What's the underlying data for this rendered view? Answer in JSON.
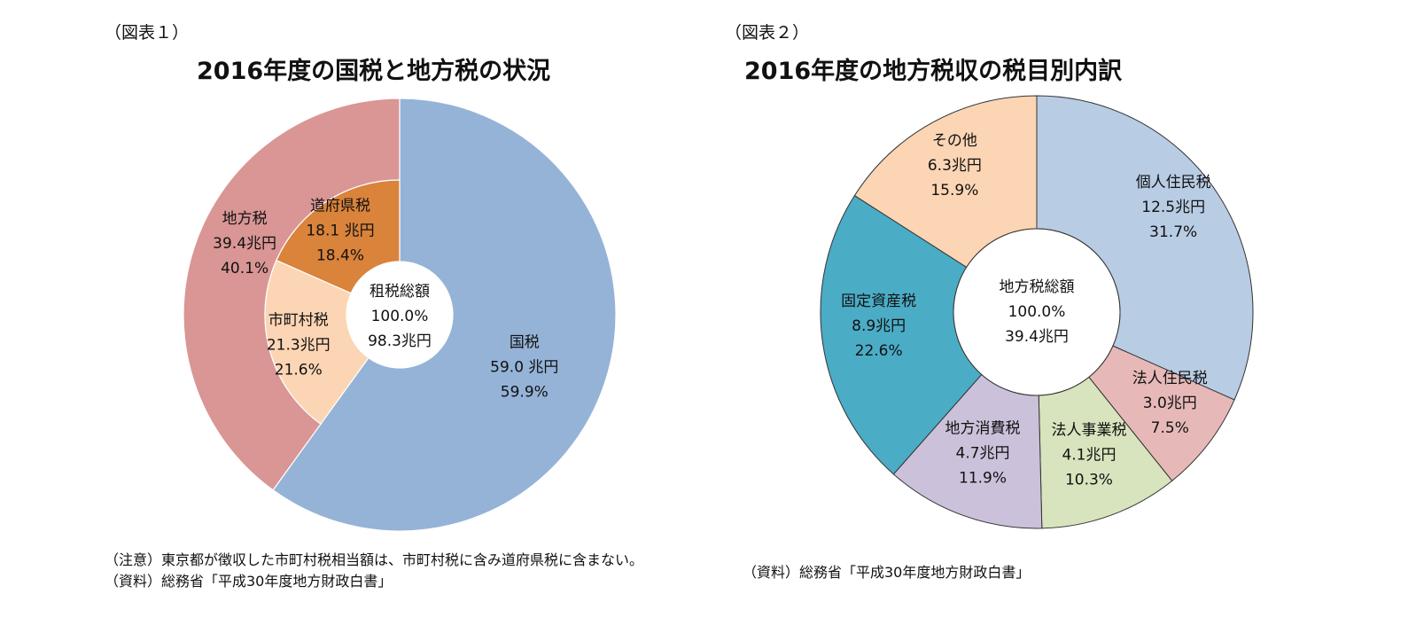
{
  "figures": [
    {
      "id": "fig1",
      "label": "（図表１）",
      "title": "2016年度の国税と地方税の状況",
      "notes": [
        "（注意）東京都が徴収した市町村税相当額は、市町村税に含み道府県税に含まない。",
        "（資料）総務省「平成30年度地方財政白書」"
      ]
    },
    {
      "id": "fig2",
      "label": "（図表２）",
      "title": "2016年度の地方税収の税目別内訳",
      "notes": [
        "（資料）総務省「平成30年度地方財政白書」"
      ]
    }
  ],
  "chart_data": [
    {
      "type": "pie",
      "subtype": "nested-donut",
      "center_label": [
        "租税総額",
        "100.0%",
        "98.3兆円"
      ],
      "outer": [
        {
          "name": "国税",
          "value_text": "59.0 兆円",
          "percent_text": "59.9%",
          "value": 59.0,
          "percent": 59.9,
          "color": "#95b3d7"
        },
        {
          "name": "地方税",
          "value_text": "39.4兆円",
          "percent_text": "40.1%",
          "value": 39.4,
          "percent": 40.1,
          "color": "#d99694"
        }
      ],
      "inner": [
        {
          "name": "道府県税",
          "value_text": "18.1 兆円",
          "percent_text": "18.4%",
          "value": 18.1,
          "percent": 18.4,
          "color": "#d9833b"
        },
        {
          "name": "市町村税",
          "value_text": "21.3兆円",
          "percent_text": "21.6%",
          "value": 21.3,
          "percent": 21.6,
          "color": "#fcd5b4"
        }
      ]
    },
    {
      "type": "pie",
      "subtype": "donut",
      "center_label": [
        "地方税総額",
        "100.0%",
        "39.4兆円"
      ],
      "slices": [
        {
          "name": "個人住民税",
          "value_text": "12.5兆円",
          "percent_text": "31.7%",
          "value": 12.5,
          "percent": 31.7,
          "color": "#b8cce4"
        },
        {
          "name": "法人住民税",
          "value_text": "3.0兆円",
          "percent_text": "7.5%",
          "value": 3.0,
          "percent": 7.5,
          "color": "#e6b9b8"
        },
        {
          "name": "法人事業税",
          "value_text": "4.1兆円",
          "percent_text": "10.3%",
          "value": 4.1,
          "percent": 10.3,
          "color": "#d7e4bd"
        },
        {
          "name": "地方消費税",
          "value_text": "4.7兆円",
          "percent_text": "11.9%",
          "value": 4.7,
          "percent": 11.9,
          "color": "#ccc1da"
        },
        {
          "name": "固定資産税",
          "value_text": "8.9兆円",
          "percent_text": "22.6%",
          "value": 8.9,
          "percent": 22.6,
          "color": "#4bacc6"
        },
        {
          "name": "その他",
          "value_text": "6.3兆円",
          "percent_text": "15.9%",
          "value": 6.3,
          "percent": 15.9,
          "color": "#fcd5b4"
        }
      ]
    }
  ]
}
